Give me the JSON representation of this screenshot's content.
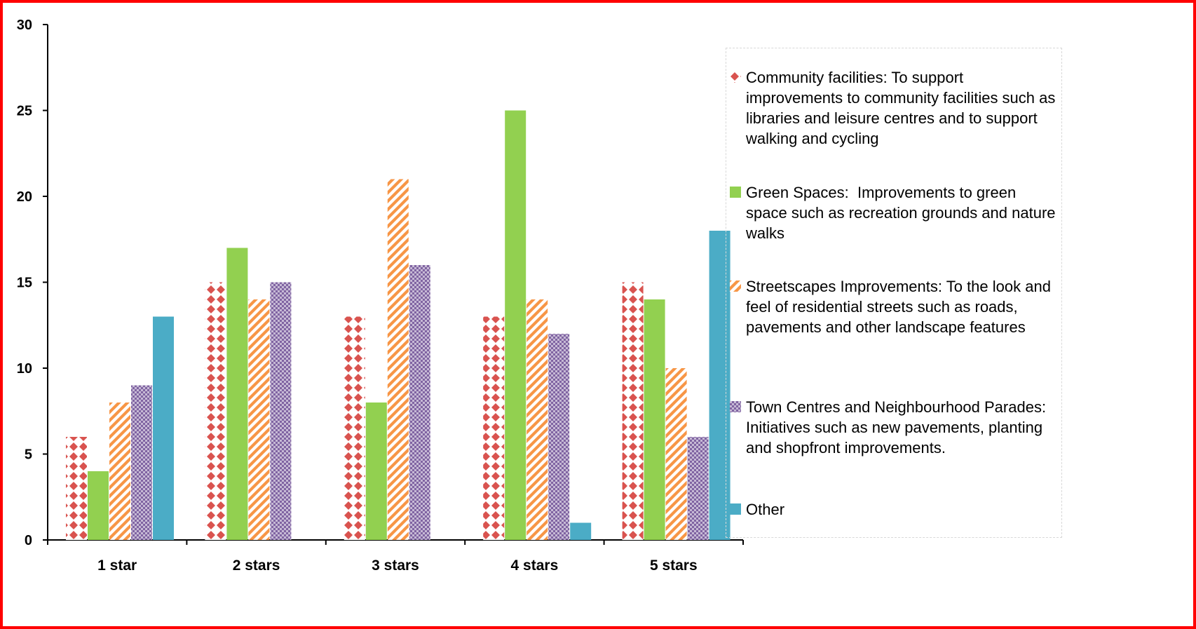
{
  "chart_data": {
    "type": "bar",
    "categories": [
      "1 star",
      "2 stars",
      "3 stars",
      "4 stars",
      "5 stars"
    ],
    "ylim": [
      0,
      30
    ],
    "yticks": [
      0,
      5,
      10,
      15,
      20,
      25,
      30
    ],
    "grid": false,
    "legend_position": "right",
    "series": [
      {
        "name": "Community facilities: To support improvements to community facilities such as libraries and leisure centres and to support walking and cycling",
        "values": [
          6,
          15,
          13,
          13,
          15
        ],
        "color": "#d9534f",
        "pattern": "diamonds"
      },
      {
        "name": "Green Spaces:  Improvements to green space such as recreation grounds and nature walks",
        "values": [
          4,
          17,
          8,
          25,
          14
        ],
        "color": "#92d050",
        "pattern": "solid"
      },
      {
        "name": "Streetscapes Improvements: To the look and feel of residential streets such as roads, pavements and other landscape features",
        "values": [
          8,
          14,
          21,
          14,
          10
        ],
        "color": "#f79646",
        "pattern": "diagonal-stripes"
      },
      {
        "name": "Town Centres and Neighbourhood Parades: Initiatives such as new pavements, planting and shopfront improvements.",
        "values": [
          9,
          15,
          16,
          12,
          6
        ],
        "color": "#8064a2",
        "pattern": "checker"
      },
      {
        "name": "Other",
        "values": [
          13,
          0,
          0,
          1,
          18
        ],
        "color": "#4bacc6",
        "pattern": "solid"
      }
    ]
  }
}
